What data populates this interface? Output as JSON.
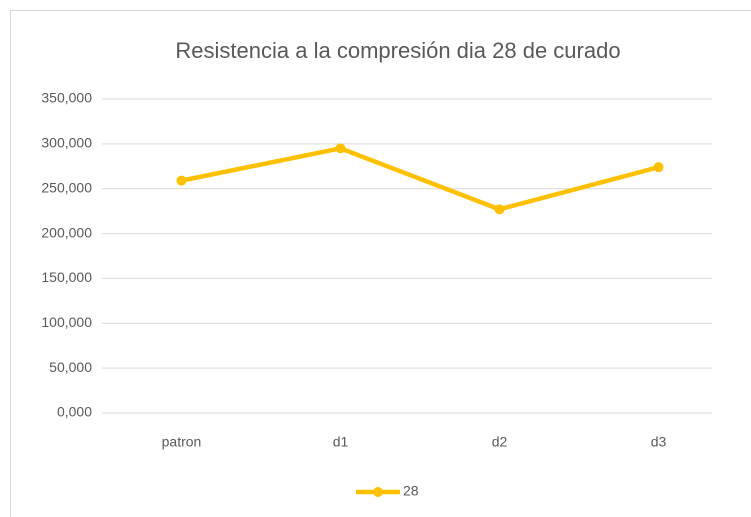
{
  "chart_data": {
    "type": "line",
    "title": "Resistencia a la compresión dia 28 de curado",
    "categories": [
      "patron",
      "d1",
      "d2",
      "d3"
    ],
    "series": [
      {
        "name": "28",
        "color": "#ffc000",
        "values": [
          259,
          295,
          227,
          274
        ]
      }
    ],
    "ylim": [
      0,
      350
    ],
    "yticks": [
      {
        "value": 0,
        "label": "0,000"
      },
      {
        "value": 50,
        "label": "50,000"
      },
      {
        "value": 100,
        "label": "100,000"
      },
      {
        "value": 150,
        "label": "150,000"
      },
      {
        "value": 200,
        "label": "200,000"
      },
      {
        "value": 250,
        "label": "250,000"
      },
      {
        "value": 300,
        "label": "300,000"
      },
      {
        "value": 350,
        "label": "350,000"
      }
    ],
    "grid": true,
    "legend": "bottom"
  }
}
